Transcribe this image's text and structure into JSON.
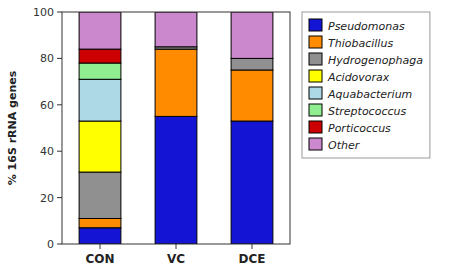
{
  "chart_data": {
    "type": "bar",
    "stacked": true,
    "categories": [
      "CON",
      "VC",
      "DCE"
    ],
    "series": [
      {
        "name": "Pseudomonas",
        "color": "#1414d4",
        "values": [
          7,
          55,
          53
        ]
      },
      {
        "name": "Thiobacillus",
        "color": "#ff8c00",
        "values": [
          4,
          29,
          22
        ]
      },
      {
        "name": "Hydrogenophaga",
        "color": "#909090",
        "values": [
          20,
          1,
          5
        ]
      },
      {
        "name": "Acidovorax",
        "color": "#ffff00",
        "values": [
          22,
          0,
          0
        ]
      },
      {
        "name": "Aquabacterium",
        "color": "#add8e6",
        "values": [
          18,
          0,
          0
        ]
      },
      {
        "name": "Streptococcus",
        "color": "#90ee90",
        "values": [
          7,
          0,
          0
        ]
      },
      {
        "name": "Porticoccus",
        "color": "#cc0000",
        "values": [
          6,
          0,
          0
        ]
      },
      {
        "name": "Other",
        "color": "#cc88cc",
        "values": [
          16,
          15,
          20
        ]
      }
    ],
    "y_label": "% 16S rRNA genes",
    "ylim": [
      0,
      100
    ],
    "yticks": [
      0,
      20,
      40,
      60,
      80,
      100
    ],
    "grid": false,
    "legend": "right"
  }
}
